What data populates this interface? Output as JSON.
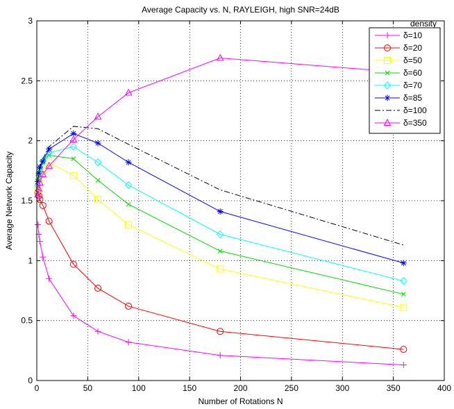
{
  "chart_data": {
    "type": "line",
    "title": "Average Capacity vs. N, RAYLEIGH, high SNR=24dB",
    "xlabel": "Number of Rotations N",
    "ylabel": "Average Network Capacity",
    "xlim": [
      0,
      400
    ],
    "ylim": [
      0,
      3
    ],
    "xticks": [
      "0",
      "50",
      "100",
      "150",
      "200",
      "250",
      "300",
      "350",
      "400"
    ],
    "yticks": [
      "0",
      "0.5",
      "1",
      "1.5",
      "2",
      "2.5",
      "3"
    ],
    "grid": true,
    "legend_title": "density",
    "legend_position": "top-right",
    "series": [
      {
        "name": "δ=10",
        "color": "#ff00ff",
        "line": "solid",
        "marker": "plus",
        "x": [
          1,
          2,
          3,
          6,
          12,
          36,
          60,
          90,
          180,
          360
        ],
        "y": [
          1.3,
          1.22,
          1.16,
          1.03,
          0.85,
          0.54,
          0.41,
          0.32,
          0.21,
          0.13
        ]
      },
      {
        "name": "δ=20",
        "color": "#ff0000",
        "line": "solid",
        "marker": "circle",
        "x": [
          1,
          2,
          3,
          6,
          12,
          36,
          60,
          90,
          180,
          360
        ],
        "y": [
          1.57,
          1.54,
          1.51,
          1.46,
          1.33,
          0.97,
          0.77,
          0.62,
          0.41,
          0.26
        ]
      },
      {
        "name": "δ=50",
        "color": "#ffff00",
        "line": "solid",
        "marker": "square",
        "x": [
          1,
          2,
          3,
          6,
          12,
          36,
          60,
          90,
          180,
          360
        ],
        "y": [
          1.6,
          1.66,
          1.72,
          1.76,
          1.82,
          1.71,
          1.51,
          1.3,
          0.93,
          0.61
        ]
      },
      {
        "name": "δ=60",
        "color": "#00dd00",
        "line": "solid",
        "marker": "x",
        "x": [
          1,
          2,
          3,
          6,
          12,
          36,
          60,
          90,
          180,
          360
        ],
        "y": [
          1.62,
          1.7,
          1.76,
          1.82,
          1.88,
          1.85,
          1.67,
          1.47,
          1.08,
          0.72
        ]
      },
      {
        "name": "δ=70",
        "color": "#00ffff",
        "line": "solid",
        "marker": "diamond",
        "x": [
          1,
          2,
          3,
          6,
          12,
          36,
          60,
          90,
          180,
          360
        ],
        "y": [
          1.63,
          1.71,
          1.77,
          1.83,
          1.9,
          1.95,
          1.82,
          1.63,
          1.22,
          0.83
        ]
      },
      {
        "name": "δ=85",
        "color": "#0000ff",
        "line": "solid",
        "marker": "asterisk",
        "x": [
          1,
          2,
          3,
          6,
          12,
          36,
          60,
          90,
          180,
          360
        ],
        "y": [
          1.66,
          1.73,
          1.78,
          1.83,
          1.93,
          2.06,
          1.98,
          1.82,
          1.41,
          0.98
        ]
      },
      {
        "name": "δ=100",
        "color": "#000000",
        "line": "dashdot",
        "marker": "none",
        "x": [
          1,
          2,
          3,
          6,
          12,
          36,
          60,
          90,
          180,
          360
        ],
        "y": [
          1.67,
          1.74,
          1.79,
          1.85,
          1.95,
          2.12,
          2.1,
          1.97,
          1.59,
          1.13
        ]
      },
      {
        "name": "δ=350",
        "color": "#ff00ff",
        "line": "solid",
        "marker": "triangle",
        "x": [
          1,
          2,
          3,
          6,
          12,
          36,
          60,
          90,
          180,
          360
        ],
        "y": [
          1.55,
          1.6,
          1.65,
          1.72,
          1.79,
          2.01,
          2.2,
          2.4,
          2.69,
          2.57
        ]
      }
    ]
  }
}
